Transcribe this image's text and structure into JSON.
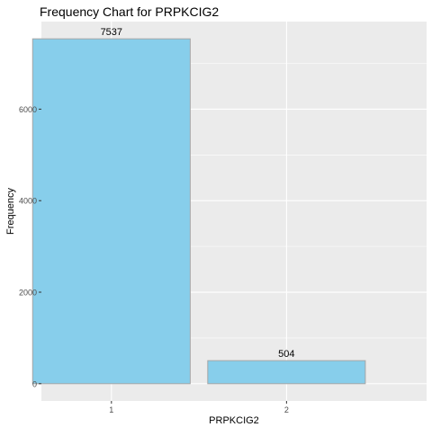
{
  "chart_data": {
    "type": "bar",
    "title": "Frequency Chart for PRPKCIG2",
    "xlabel": "PRPKCIG2",
    "ylabel": "Frequency",
    "categories": [
      "1",
      "2"
    ],
    "values": [
      7537,
      504
    ],
    "value_labels": [
      "7537",
      "504"
    ],
    "ylim": [
      -377,
      7914
    ],
    "yticks": [
      0,
      2000,
      4000,
      6000
    ],
    "ytick_labels": [
      "0",
      "2000",
      "4000",
      "6000"
    ],
    "grid": true,
    "legend": "none",
    "colors": {
      "panel_background": "#ebebeb",
      "grid_major": "#ffffff",
      "bar_fill": "#87ceeb",
      "bar_stroke": "#a6a6a6",
      "text": "#000000",
      "tick_text": "#4d4d4d",
      "tick_mark": "#333333"
    }
  }
}
